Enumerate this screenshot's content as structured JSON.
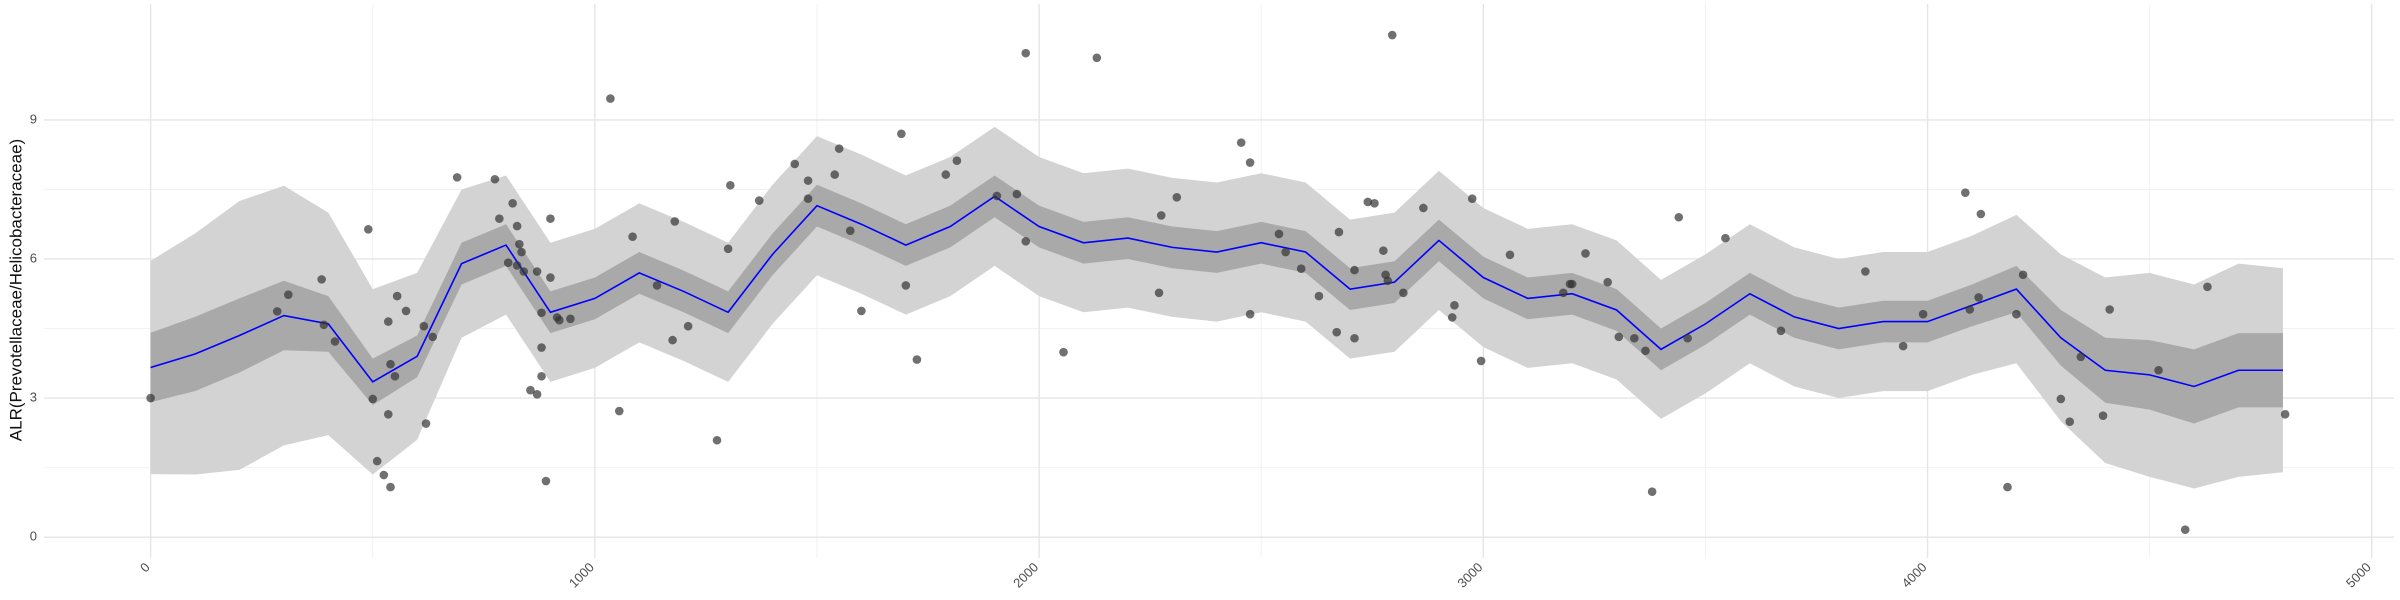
{
  "chart_data": {
    "type": "scatter",
    "y_label": "ALR(Prevotellaceae/Helicobacteraceae)",
    "xlim": [
      -240,
      5050
    ],
    "ylim": [
      -0.45,
      11.5
    ],
    "xticks": [
      0,
      1000,
      2000,
      3000,
      4000,
      5000
    ],
    "yticks": [
      0,
      3,
      6,
      9
    ],
    "grid": true,
    "minor_grid": true,
    "point_color": "#333333",
    "points": {
      "x": [
        0,
        310,
        285,
        385,
        390,
        415,
        490,
        500,
        510,
        525,
        540,
        535,
        540,
        535,
        555,
        550,
        575,
        615,
        620,
        635,
        690,
        775,
        785,
        815,
        825,
        830,
        835,
        840,
        825,
        805,
        900,
        870,
        855,
        870,
        880,
        880,
        890,
        880,
        900,
        915,
        920,
        945,
        1035,
        1055,
        1085,
        1140,
        1175,
        1180,
        1210,
        1275,
        1305,
        1300,
        1370,
        1450,
        1480,
        1480,
        1540,
        1550,
        1575,
        1600,
        1690,
        1700,
        1725,
        1790,
        1815,
        1905,
        1950,
        1970,
        1970,
        2055,
        2130,
        2270,
        2275,
        2310,
        2455,
        2475,
        2475,
        2540,
        2555,
        2590,
        2630,
        2670,
        2675,
        2710,
        2710,
        2740,
        2755,
        2775,
        2780,
        2785,
        2795,
        2820,
        2865,
        2930,
        2935,
        2975,
        2995,
        3060,
        3180,
        3195,
        3200,
        3230,
        3280,
        3305,
        3340,
        3365,
        3380,
        3440,
        3460,
        3545,
        3670,
        3860,
        3945,
        3990,
        4085,
        4095,
        4115,
        4120,
        4180,
        4200,
        4215,
        4300,
        4320,
        4345,
        4395,
        4410,
        4520,
        4580,
        4630,
        4805
      ],
      "y": [
        3.0,
        5.23,
        4.87,
        5.56,
        4.58,
        4.22,
        6.64,
        2.98,
        1.64,
        1.34,
        1.08,
        2.65,
        3.73,
        4.65,
        5.2,
        3.47,
        4.88,
        4.55,
        2.45,
        4.32,
        7.76,
        7.72,
        6.87,
        7.2,
        6.71,
        6.32,
        6.15,
        5.73,
        5.86,
        5.92,
        6.87,
        5.73,
        3.17,
        3.08,
        3.47,
        4.09,
        1.21,
        4.84,
        5.6,
        4.74,
        4.68,
        4.71,
        9.46,
        2.72,
        6.48,
        5.43,
        4.25,
        6.81,
        4.55,
        2.09,
        7.59,
        6.22,
        7.26,
        8.05,
        7.3,
        7.69,
        7.82,
        8.38,
        6.61,
        4.88,
        8.7,
        5.43,
        3.83,
        7.82,
        8.12,
        7.36,
        7.4,
        6.38,
        10.44,
        3.99,
        10.34,
        5.27,
        6.94,
        7.33,
        8.51,
        8.08,
        4.81,
        6.54,
        6.15,
        5.79,
        5.2,
        4.42,
        6.58,
        4.29,
        5.76,
        7.23,
        7.2,
        6.18,
        5.66,
        5.53,
        10.83,
        5.27,
        7.1,
        4.74,
        5.0,
        7.3,
        3.8,
        6.09,
        5.27,
        5.46,
        5.46,
        6.12,
        5.5,
        4.32,
        4.29,
        4.02,
        0.98,
        6.9,
        4.29,
        6.45,
        4.45,
        5.73,
        4.12,
        4.81,
        7.43,
        4.91,
        5.17,
        6.97,
        1.08,
        4.81,
        5.66,
        2.98,
        2.49,
        3.89,
        2.62,
        4.91,
        3.6,
        0.16,
        5.4,
        2.65
      ]
    },
    "fit": {
      "color": "#0000ff",
      "inner_color": "#a9a9a9",
      "outer_color": "#d3d3d3",
      "x": [
        0,
        100,
        200,
        300,
        400,
        500,
        600,
        700,
        800,
        900,
        1000,
        1100,
        1200,
        1300,
        1400,
        1500,
        1600,
        1700,
        1800,
        1900,
        2000,
        2100,
        2200,
        2300,
        2400,
        2500,
        2600,
        2700,
        2800,
        2900,
        3000,
        3100,
        3200,
        3300,
        3400,
        3500,
        3600,
        3700,
        3800,
        3900,
        4000,
        4100,
        4200,
        4300,
        4400,
        4500,
        4600,
        4700,
        4800
      ],
      "y": [
        3.66,
        3.95,
        4.35,
        4.78,
        4.6,
        3.35,
        3.9,
        5.9,
        6.3,
        4.85,
        5.15,
        5.7,
        5.3,
        4.85,
        6.1,
        7.15,
        6.75,
        6.3,
        6.7,
        7.35,
        6.7,
        6.35,
        6.45,
        6.25,
        6.15,
        6.35,
        6.15,
        5.35,
        5.5,
        6.4,
        5.6,
        5.15,
        5.25,
        4.9,
        4.05,
        4.6,
        5.25,
        4.75,
        4.5,
        4.65,
        4.65,
        5.0,
        5.35,
        4.3,
        3.6,
        3.5,
        3.25,
        3.6,
        3.6
      ],
      "inner_lower": [
        2.91,
        3.15,
        3.55,
        4.03,
        4.0,
        2.85,
        3.45,
        5.45,
        5.85,
        4.4,
        4.7,
        5.25,
        4.85,
        4.4,
        5.65,
        6.7,
        6.3,
        5.85,
        6.25,
        6.9,
        6.25,
        5.9,
        6.0,
        5.8,
        5.7,
        5.9,
        5.7,
        4.9,
        5.05,
        5.95,
        5.15,
        4.7,
        4.8,
        4.45,
        3.6,
        4.15,
        4.8,
        4.3,
        4.05,
        4.2,
        4.2,
        4.55,
        4.85,
        3.7,
        2.9,
        2.75,
        2.45,
        2.8,
        2.8
      ],
      "inner_upper": [
        4.41,
        4.75,
        5.15,
        5.53,
        5.2,
        3.85,
        4.35,
        6.35,
        6.75,
        5.3,
        5.6,
        6.15,
        5.75,
        5.3,
        6.55,
        7.6,
        7.2,
        6.75,
        7.15,
        7.8,
        7.15,
        6.8,
        6.9,
        6.7,
        6.6,
        6.8,
        6.6,
        5.8,
        5.95,
        6.85,
        6.05,
        5.6,
        5.7,
        5.35,
        4.5,
        5.05,
        5.7,
        5.2,
        4.95,
        5.1,
        5.1,
        5.45,
        5.85,
        4.9,
        4.3,
        4.25,
        4.05,
        4.4,
        4.4
      ],
      "outer_lower": [
        1.36,
        1.35,
        1.45,
        1.98,
        2.2,
        1.35,
        2.1,
        4.3,
        4.8,
        3.35,
        3.65,
        4.2,
        3.8,
        3.35,
        4.6,
        5.65,
        5.25,
        4.8,
        5.2,
        5.85,
        5.2,
        4.85,
        4.95,
        4.75,
        4.65,
        4.85,
        4.65,
        3.85,
        4.0,
        4.9,
        4.1,
        3.65,
        3.75,
        3.4,
        2.55,
        3.1,
        3.75,
        3.25,
        3.0,
        3.15,
        3.15,
        3.5,
        3.75,
        2.5,
        1.6,
        1.3,
        1.05,
        1.3,
        1.4
      ],
      "outer_upper": [
        5.96,
        6.55,
        7.25,
        7.58,
        7.0,
        5.35,
        5.7,
        7.5,
        7.8,
        6.35,
        6.65,
        7.2,
        6.8,
        6.35,
        7.6,
        8.65,
        8.25,
        7.8,
        8.2,
        8.85,
        8.2,
        7.85,
        7.95,
        7.75,
        7.65,
        7.85,
        7.65,
        6.85,
        7.0,
        7.9,
        7.1,
        6.65,
        6.75,
        6.4,
        5.55,
        6.1,
        6.75,
        6.25,
        6.0,
        6.15,
        6.15,
        6.5,
        6.95,
        6.1,
        5.6,
        5.7,
        5.45,
        5.9,
        5.8
      ]
    }
  }
}
